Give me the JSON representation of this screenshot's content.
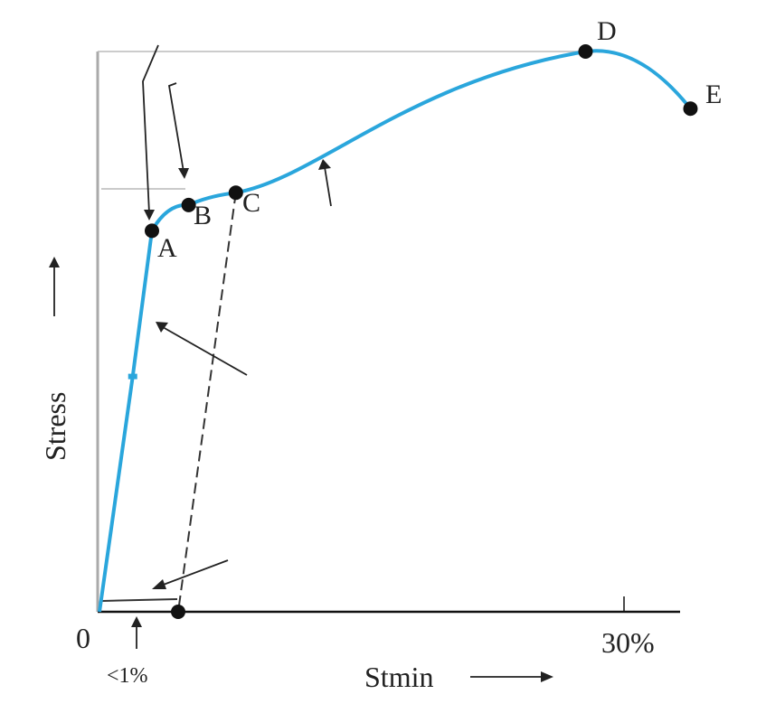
{
  "chart_data": {
    "type": "line",
    "title": "",
    "xlabel": "Stmin",
    "ylabel": "Stress",
    "x_unit": "%",
    "xlim": [
      0,
      30
    ],
    "ylim": [
      0,
      100
    ],
    "origin_label": "0",
    "x_tick_label": "30%",
    "annotation_small_strain": "<1%",
    "series": [
      {
        "name": "stress-strain curve",
        "color": "#2aa6dc",
        "points": [
          {
            "label": "0",
            "x": 0,
            "y": 0
          },
          {
            "label": "",
            "x": 1.9,
            "y": 42
          },
          {
            "label": "A",
            "x": 3.0,
            "y": 68
          },
          {
            "label": "B",
            "x": 5.1,
            "y": 72.6
          },
          {
            "label": "C",
            "x": 7.8,
            "y": 74.8
          },
          {
            "label": "D",
            "x": 27.8,
            "y": 100
          },
          {
            "label": "E",
            "x": 33.8,
            "y": 89.8
          }
        ]
      }
    ],
    "unloading_line": {
      "from": "C",
      "to_x": 4.5,
      "style": "dashed"
    },
    "point_labels": [
      "A",
      "B",
      "C",
      "D",
      "E"
    ]
  }
}
